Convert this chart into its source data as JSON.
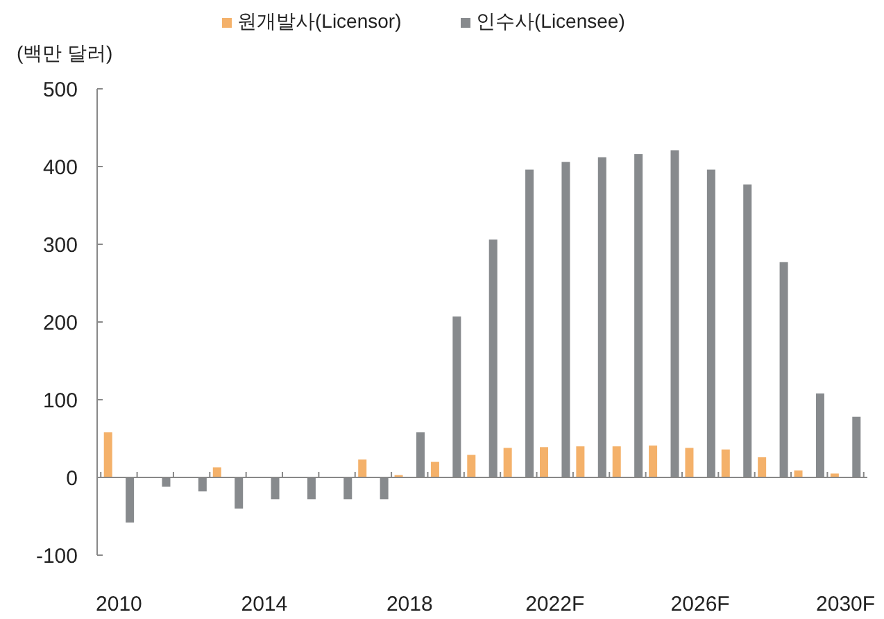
{
  "chart_data": {
    "type": "bar",
    "ylabel": "(백만 달러)",
    "categories": [
      "2010",
      null,
      null,
      null,
      "2014",
      null,
      null,
      null,
      "2018",
      null,
      null,
      null,
      "2022F",
      null,
      null,
      null,
      "2026F",
      null,
      null,
      null,
      "2030F"
    ],
    "series": [
      {
        "name": "원개발사(Licensor)",
        "color": "#f4b16a",
        "values": [
          58,
          0,
          0,
          13,
          0,
          0,
          0,
          23,
          3,
          20,
          29,
          38,
          39,
          40,
          40,
          41,
          38,
          36,
          26,
          9,
          5
        ]
      },
      {
        "name": "인수사(Licensee)",
        "color": "#878a8d",
        "values": [
          -58,
          -12,
          -18,
          -40,
          -28,
          -28,
          -28,
          -28,
          58,
          207,
          306,
          396,
          406,
          412,
          416,
          421,
          396,
          377,
          277,
          108,
          78
        ]
      }
    ],
    "ylim": [
      -100,
      500
    ],
    "yticks": [
      -100,
      0,
      100,
      200,
      300,
      400,
      500
    ],
    "legend": "top"
  }
}
